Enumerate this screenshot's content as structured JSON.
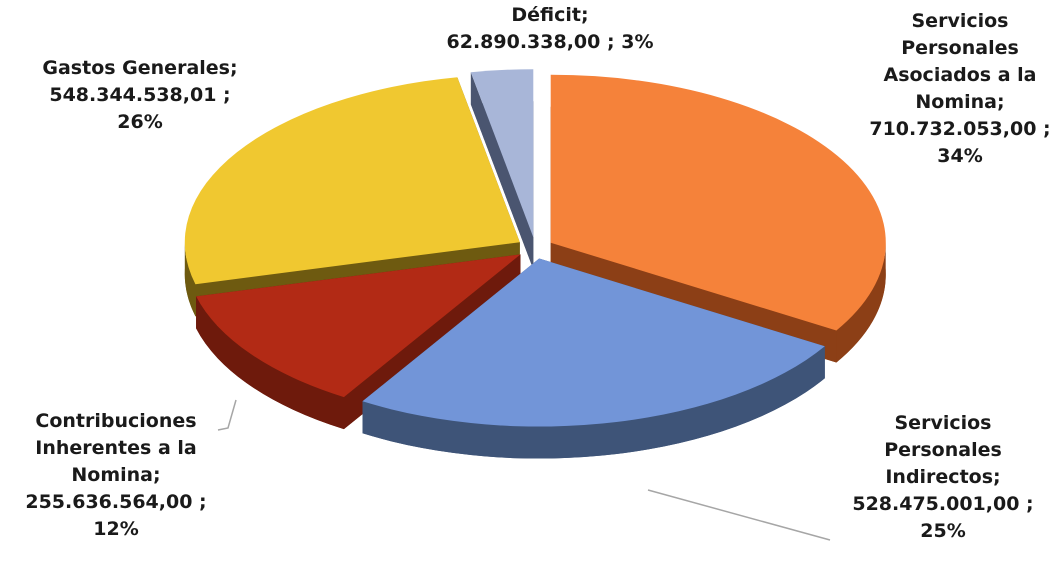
{
  "chart_data": {
    "type": "pie",
    "categories": [
      "Servicios Personales Asociados a la Nomina",
      "Servicios Personales Indirectos",
      "Contribuciones Inherentes a la Nomina",
      "Gastos Generales",
      "Déficit"
    ],
    "values": [
      710732053.0,
      528475001.0,
      255636564.0,
      548344538.01,
      62890338.0
    ],
    "value_labels": [
      "710.732.053,00",
      "528.475.001,00",
      "255.636.564,00",
      "548.344.538,01",
      "62.890.338,00"
    ],
    "percents": [
      34,
      25,
      12,
      26,
      3
    ],
    "percent_labels": [
      "34%",
      "25%",
      "12%",
      "26%",
      "3%"
    ],
    "label_separator": ";",
    "colors": [
      "#f5823a",
      "#7295d8",
      "#b22a15",
      "#f0c830",
      "#a8b6d8"
    ],
    "side_colors": [
      "#8c3f16",
      "#3e5478",
      "#6e1a0c",
      "#6e5a10",
      "#4a5570"
    ]
  }
}
